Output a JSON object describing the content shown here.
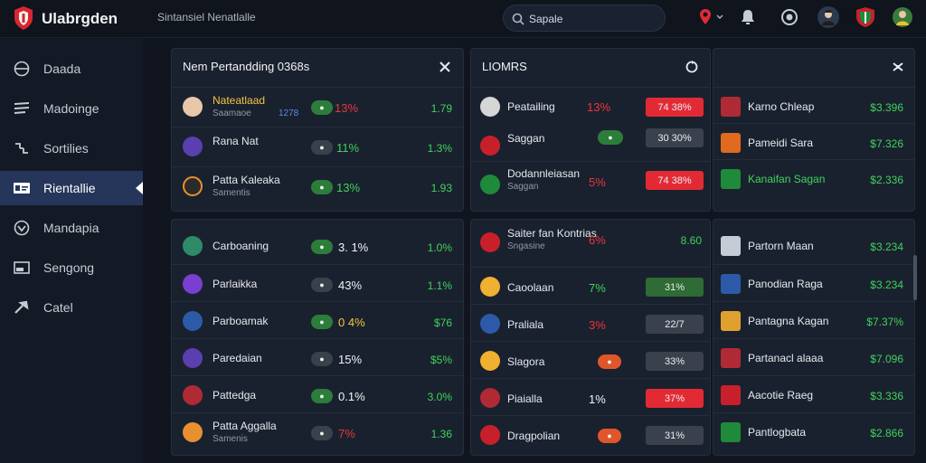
{
  "app": {
    "title": "Ulabrgden",
    "subtitle": "Sintansiel Nenatlalle"
  },
  "search": {
    "value": "Sapale"
  },
  "sidebar": [
    {
      "label": "Daada",
      "icon": "target-icon"
    },
    {
      "label": "Madoinge",
      "icon": "hamburger-icon"
    },
    {
      "label": "Sortilies",
      "icon": "link-icon"
    },
    {
      "label": "Rientallie",
      "icon": "id-card-icon",
      "active": true
    },
    {
      "label": "Mandapia",
      "icon": "heart-icon"
    },
    {
      "label": "Sengong",
      "icon": "mail-icon"
    },
    {
      "label": "Catel",
      "icon": "tools-icon"
    }
  ],
  "left_top": {
    "title": "Nem Pertandding 0368s",
    "rows": [
      {
        "name": "Nateatlaad",
        "sub": "Saamaoe",
        "pct": "13%",
        "pct_color": "red",
        "val": "1.79",
        "name_color": "yellow",
        "extra": "1278"
      },
      {
        "name": "Rana Nat",
        "sub": "",
        "pct": "11%",
        "pct_color": "green",
        "val": "1.3%"
      },
      {
        "name": "Patta Kaleaka",
        "sub": "Samentis",
        "pct": "13%",
        "pct_color": "green",
        "val": "1.93"
      }
    ]
  },
  "left_bottom": {
    "rows": [
      {
        "name": "Carboaning",
        "pct": "3. 1%",
        "pct_color": "white",
        "val": "1.0%"
      },
      {
        "name": "Parlaikka",
        "pct": "43%",
        "pct_color": "white",
        "val": "1.1%"
      },
      {
        "name": "Parboamak",
        "pct": "0 4%",
        "pct_color": "yellow",
        "val": "$76"
      },
      {
        "name": "Paredaian",
        "pct": "15%",
        "pct_color": "white",
        "val": "$5%"
      },
      {
        "name": "Pattedga",
        "pct": "0.1%",
        "pct_color": "white",
        "val": "3.0%"
      },
      {
        "name": "Patta Aggalla",
        "sub": "Samenis",
        "pct": "7%",
        "pct_color": "red",
        "val": "1.36"
      }
    ]
  },
  "mid_top": {
    "title": "LIOMRS",
    "rows": [
      {
        "name": "Peatailing",
        "pct": "13%",
        "pct_color": "red",
        "box": "74 38%",
        "box_color": "red"
      },
      {
        "name": "Saggan",
        "pct": "",
        "box": "30 30%",
        "box_color": "gray"
      },
      {
        "name": "Dodannleiasan",
        "sub": "Saggan",
        "pct": "5%",
        "pct_color": "red",
        "box": "74 38%",
        "box_color": "red"
      }
    ]
  },
  "mid_bottom": {
    "rows": [
      {
        "name": "Saiter fan Kontrias",
        "sub": "Sngasine",
        "pct": "6%",
        "pct_color": "red",
        "val": "8.60"
      },
      {
        "name": "Caoolaan",
        "pct": "7%",
        "pct_color": "green",
        "box": "31%",
        "box_color": "green"
      },
      {
        "name": "Praliala",
        "pct": "3%",
        "pct_color": "red",
        "box": "22/7",
        "box_color": "gray"
      },
      {
        "name": "Slagora",
        "pct": "",
        "box": "33%",
        "box_color": "gray"
      },
      {
        "name": "Piaialla",
        "pct": "1%",
        "pct_color": "white",
        "box": "37%",
        "box_color": "red"
      },
      {
        "name": "Dragpolian",
        "pct": "",
        "box": "31%",
        "box_color": "gray"
      }
    ]
  },
  "right_top": {
    "rows": [
      {
        "name": "Karno Chleap",
        "val": "$3.396"
      },
      {
        "name": "Pameidi Sara",
        "val": "$7.326"
      },
      {
        "name": "Kanaifan Sagan",
        "val": "$2.336",
        "name_color": "green"
      }
    ]
  },
  "right_bottom": {
    "rows": [
      {
        "name": "Partorn Maan",
        "val": "$3.234"
      },
      {
        "name": "Panodian Raga",
        "val": "$3.234"
      },
      {
        "name": "Pantagna Kagan",
        "val": "$7.37%"
      },
      {
        "name": "Partanacl alaaa",
        "val": "$7.096"
      },
      {
        "name": "Aacotie Raeg",
        "val": "$3.336"
      },
      {
        "name": "Pantlogbata",
        "val": "$2.866"
      }
    ]
  },
  "colors": {
    "accent_green": "#3fd35c",
    "accent_red": "#e22a35",
    "active_nav": "#26355a"
  }
}
